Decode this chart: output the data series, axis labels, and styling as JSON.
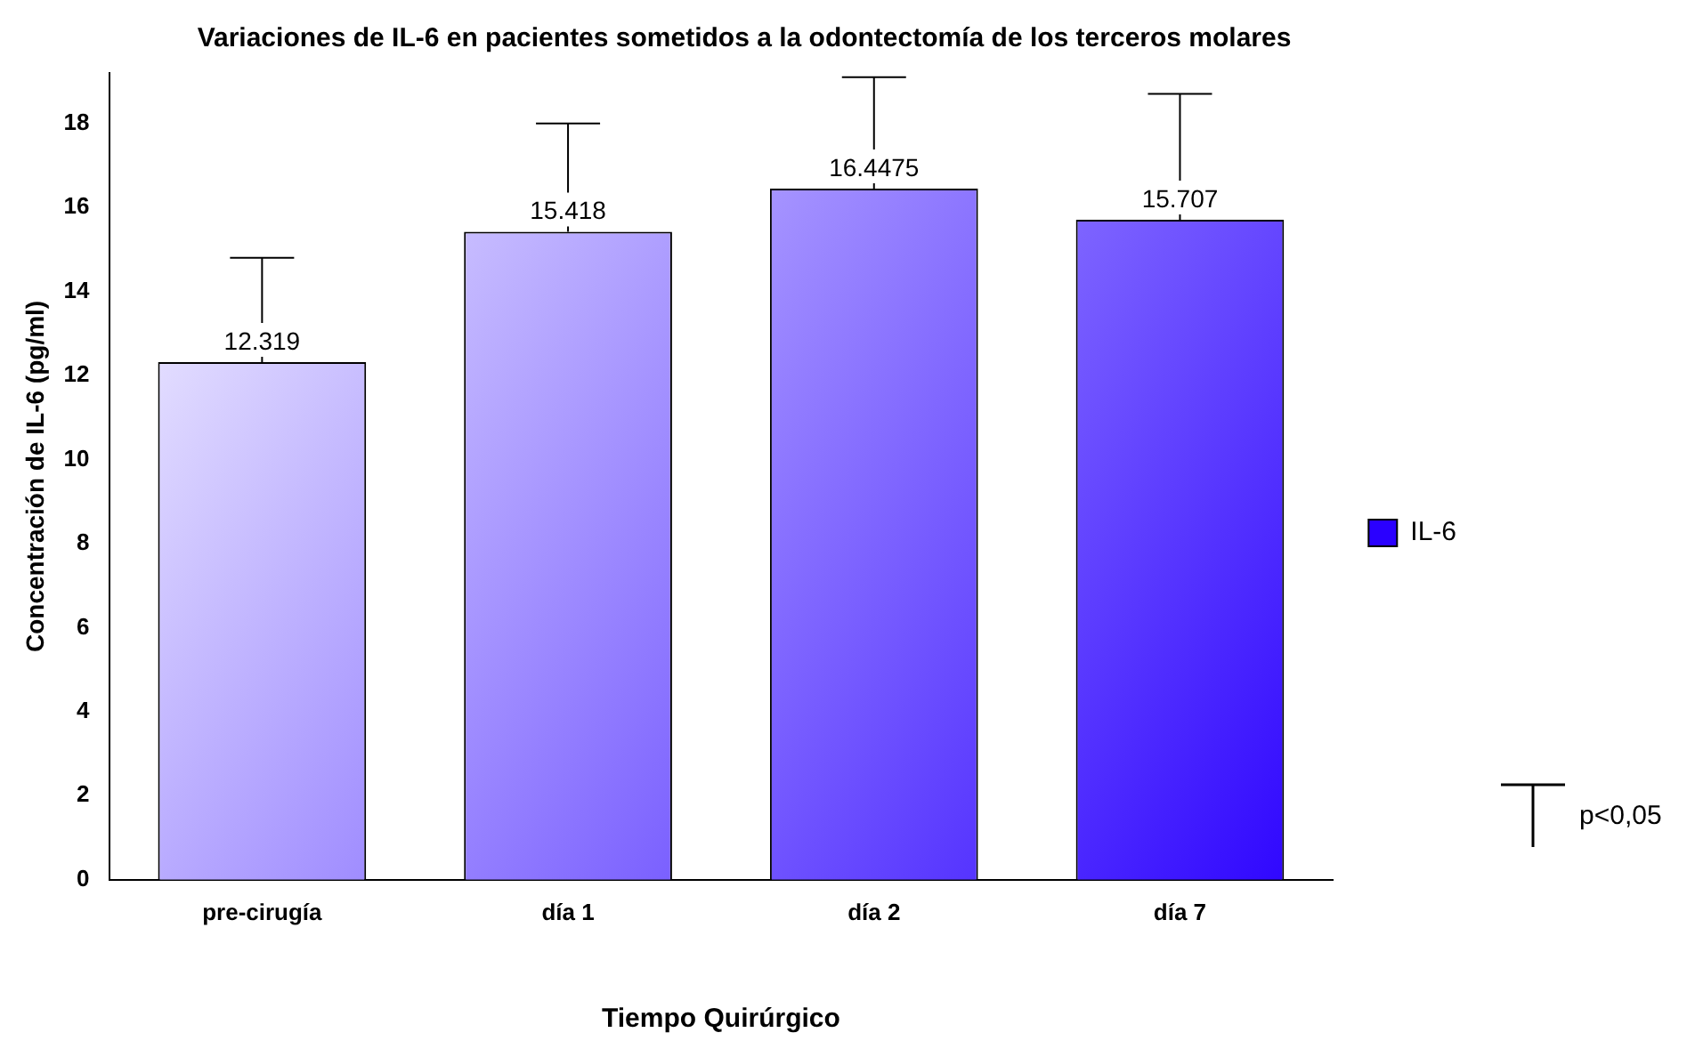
{
  "chart_data": {
    "type": "bar",
    "title": "Variaciones de IL-6 en pacientes sometidos a la odontectomía de los terceros molares",
    "xlabel": "Tiempo Quirúrgico",
    "ylabel": "Concentración de IL-6 (pg/ml)",
    "categories": [
      "pre-cirugía",
      "día 1",
      "día 2",
      "día 7"
    ],
    "series": [
      {
        "name": "IL-6",
        "color": "#2a00ff",
        "values": [
          12.319,
          15.418,
          16.4475,
          15.707
        ],
        "errors": [
          [
            12.319,
            14.8
          ],
          [
            15.418,
            18.0
          ],
          [
            16.4475,
            19.1
          ],
          [
            15.707,
            18.7
          ]
        ]
      }
    ],
    "ylim": [
      0,
      19.2
    ],
    "yticks": [
      0,
      2,
      4,
      6,
      8,
      10,
      12,
      14,
      16,
      18
    ],
    "grid": false,
    "legend": "right",
    "data_labels": true,
    "annotations": [
      "p<0,05"
    ]
  }
}
